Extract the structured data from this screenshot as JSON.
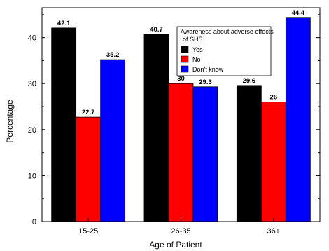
{
  "chart_data": {
    "type": "bar",
    "categories": [
      "15-25",
      "26-35",
      "36+"
    ],
    "series": [
      {
        "name": "Yes",
        "values": [
          42.1,
          40.7,
          29.6
        ],
        "color": "#000000"
      },
      {
        "name": "No",
        "values": [
          22.7,
          30,
          26
        ],
        "color": "#ff0000"
      },
      {
        "name": "Don't know",
        "values": [
          35.2,
          29.3,
          44.4
        ],
        "color": "#0000ff"
      }
    ],
    "data_labels": [
      [
        "42.1",
        "22.7",
        "35.2"
      ],
      [
        "40.7",
        "30",
        "29.3"
      ],
      [
        "29.6",
        "26",
        "44.4"
      ]
    ],
    "xlabel": "Age of Patient",
    "ylabel": "Percentage",
    "ylim": [
      0,
      46.5
    ],
    "yticks": [
      0,
      10,
      20,
      30,
      40
    ],
    "legend": {
      "title_line1": "Awareness about adverse effects",
      "title_line2": "of SHS",
      "placement": "top-right"
    },
    "grid": false
  }
}
